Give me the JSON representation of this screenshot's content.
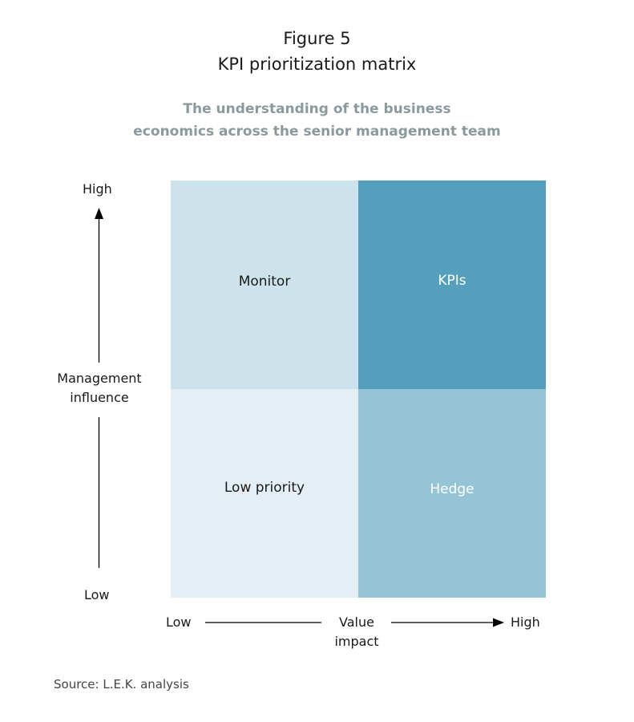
{
  "figure": {
    "label": "Figure 5",
    "title": "KPI prioritization matrix",
    "subtitle_line1": "The understanding of the business",
    "subtitle_line2": "economics across the senior management team",
    "source": "Source: L.E.K. analysis"
  },
  "colors": {
    "monitor_fill": "#cce3ec",
    "kpis_fill": "#549fbe",
    "low_priority_fill": "#e3eff4",
    "hedge_fill": "#95c4d6",
    "dark_text": "#1a1a1a",
    "light_text": "#ffffff",
    "subtitle_text": "#8a9a9c"
  },
  "quadrants": {
    "monitor": "Monitor",
    "kpis": "KPIs",
    "low_priority": "Low priority",
    "hedge": "Hedge"
  },
  "y_axis": {
    "high": "High",
    "low": "Low",
    "title_line1": "Management",
    "title_line2": "influence"
  },
  "x_axis": {
    "low": "Low",
    "high": "High",
    "title_line1": "Value",
    "title_line2": "impact"
  }
}
